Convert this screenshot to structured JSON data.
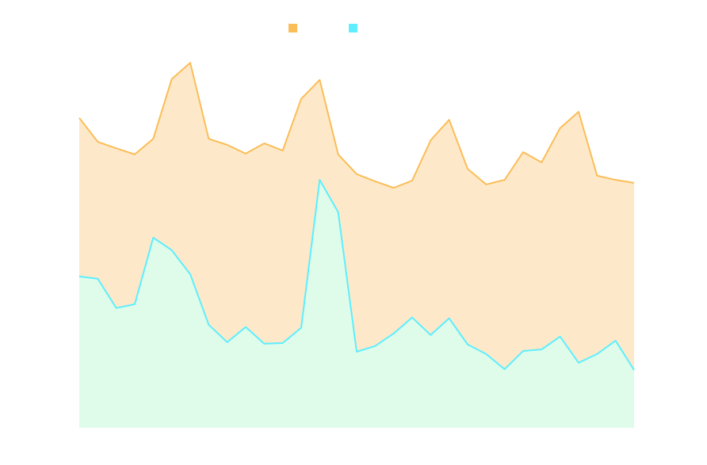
{
  "chart_data": {
    "type": "area",
    "categories": [
      null,
      null,
      null,
      null,
      null,
      null,
      null,
      null,
      null,
      null,
      null,
      null,
      null,
      null,
      null,
      null,
      null,
      null,
      null,
      null,
      null,
      null,
      null,
      null,
      null,
      null,
      null,
      null,
      null,
      null,
      null
    ],
    "ylim": [
      0,
      100
    ],
    "legend": "top",
    "series": [
      {
        "color": "#fbbd57",
        "fill": "#fde9c9",
        "values": [
          81.5,
          75.2,
          73.5,
          71.9,
          76.0,
          91.7,
          96.0,
          76.0,
          74.4,
          72.1,
          74.8,
          72.9,
          86.5,
          91.5,
          71.9,
          66.7,
          64.8,
          63.1,
          65.0,
          75.6,
          81.0,
          68.1,
          64.0,
          65.2,
          72.5,
          69.8,
          78.8,
          83.1,
          66.3,
          65.2,
          64.4
        ]
      },
      {
        "color": "#5eeeff",
        "fill": "#defce9",
        "values": [
          39.8,
          39.2,
          31.5,
          32.5,
          50.0,
          46.7,
          40.4,
          27.1,
          22.5,
          26.5,
          22.1,
          22.3,
          26.3,
          65.2,
          56.7,
          20.0,
          21.5,
          24.8,
          29.0,
          24.4,
          28.8,
          21.9,
          19.4,
          15.4,
          20.2,
          20.6,
          24.0,
          17.1,
          19.4,
          22.9,
          15.2
        ]
      }
    ]
  }
}
